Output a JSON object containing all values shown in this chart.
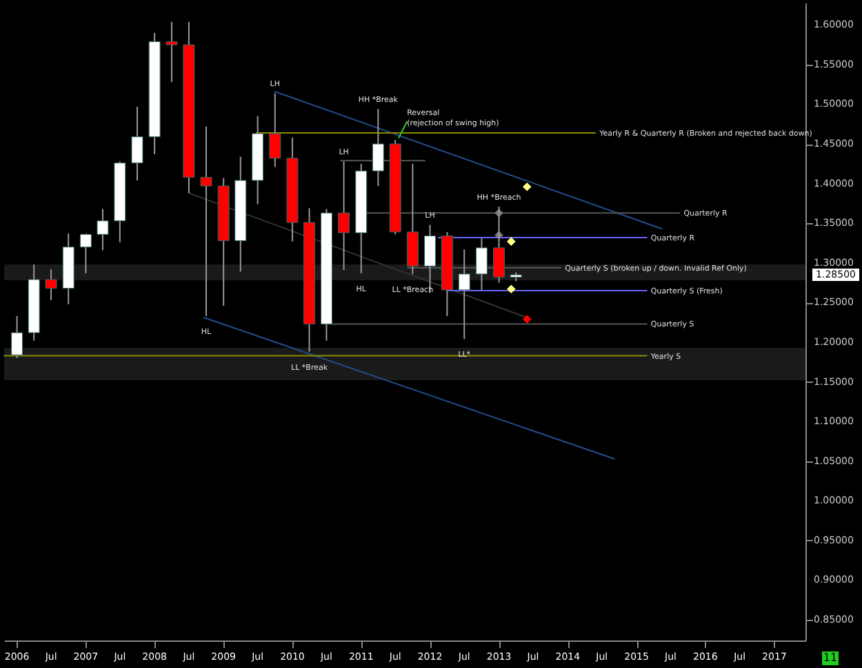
{
  "chart_data": {
    "type": "candlestick",
    "x": [
      "2006-01-01",
      "2006-04-01",
      "2006-07-01",
      "2006-10-01",
      "2007-01-01",
      "2007-04-01",
      "2007-07-01",
      "2007-10-01",
      "2008-01-01",
      "2008-04-01",
      "2008-07-01",
      "2008-10-01",
      "2009-01-01",
      "2009-04-01",
      "2009-07-01",
      "2009-10-01",
      "2010-01-01",
      "2010-04-01",
      "2010-07-01",
      "2010-10-01",
      "2011-01-01",
      "2011-04-01",
      "2011-07-01",
      "2011-10-01",
      "2012-01-01",
      "2012-04-01",
      "2012-07-01",
      "2012-10-01",
      "2013-01-01",
      "2013-04-01"
    ],
    "ohlc": [
      [
        1.184,
        1.233,
        1.18,
        1.212
      ],
      [
        1.212,
        1.298,
        1.202,
        1.279
      ],
      [
        1.279,
        1.292,
        1.253,
        1.268
      ],
      [
        1.268,
        1.337,
        1.248,
        1.32
      ],
      [
        1.32,
        1.337,
        1.287,
        1.336
      ],
      [
        1.336,
        1.368,
        1.316,
        1.353
      ],
      [
        1.353,
        1.428,
        1.326,
        1.426
      ],
      [
        1.426,
        1.497,
        1.404,
        1.459
      ],
      [
        1.459,
        1.59,
        1.437,
        1.579
      ],
      [
        1.579,
        1.604,
        1.528,
        1.575
      ],
      [
        1.575,
        1.604,
        1.388,
        1.408
      ],
      [
        1.408,
        1.472,
        1.233,
        1.397
      ],
      [
        1.397,
        1.407,
        1.246,
        1.328
      ],
      [
        1.328,
        1.434,
        1.289,
        1.404
      ],
      [
        1.404,
        1.485,
        1.374,
        1.463
      ],
      [
        1.463,
        1.514,
        1.421,
        1.432
      ],
      [
        1.432,
        1.458,
        1.327,
        1.351
      ],
      [
        1.351,
        1.369,
        1.188,
        1.223
      ],
      [
        1.223,
        1.368,
        1.202,
        1.363
      ],
      [
        1.363,
        1.428,
        1.291,
        1.338
      ],
      [
        1.338,
        1.425,
        1.287,
        1.416
      ],
      [
        1.416,
        1.494,
        1.397,
        1.45
      ],
      [
        1.45,
        1.455,
        1.336,
        1.339
      ],
      [
        1.339,
        1.425,
        1.286,
        1.296
      ],
      [
        1.296,
        1.348,
        1.262,
        1.334
      ],
      [
        1.334,
        1.339,
        1.233,
        1.266
      ],
      [
        1.266,
        1.317,
        1.204,
        1.286
      ],
      [
        1.286,
        1.331,
        1.266,
        1.319
      ],
      [
        1.319,
        1.371,
        1.275,
        1.282
      ],
      [
        1.282,
        1.288,
        1.277,
        1.285
      ]
    ],
    "colors": [
      "#ffffff",
      "#ffffff",
      "#ff0000",
      "#ffffff",
      "#ffffff",
      "#ffffff",
      "#ffffff",
      "#ffffff",
      "#ffffff",
      "#ff0000",
      "#ff0000",
      "#ff0000",
      "#ff0000",
      "#ffffff",
      "#ffffff",
      "#ff0000",
      "#ff0000",
      "#ff0000",
      "#ffffff",
      "#ff0000",
      "#ffffff",
      "#ffffff",
      "#ff0000",
      "#ff0000",
      "#ffffff",
      "#ff0000",
      "#ffffff",
      "#ffffff",
      "#ff0000",
      "#ffffff"
    ],
    "series": [
      {
        "type": "line",
        "color": "#1f4f8f",
        "x": [
          "2009-10-01",
          "2015-05-15"
        ],
        "values": [
          1.516,
          1.343
        ]
      },
      {
        "type": "line",
        "color": "#1f4f8f",
        "x": [
          "2008-09-20",
          "2014-09-05"
        ],
        "values": [
          1.231,
          1.053
        ]
      },
      {
        "type": "line",
        "color": "#333333",
        "x": [
          "2008-07-01",
          "2013-05-30"
        ],
        "values": [
          1.388,
          1.231
        ]
      },
      {
        "type": "line",
        "color": "#8b8b00",
        "x": [
          "2009-06-25",
          "2014-05-27"
        ],
        "values": [
          1.464,
          1.464
        ]
      },
      {
        "type": "line",
        "color": "#8b8b00",
        "x": [
          "2005-10-25",
          "2015-02-24"
        ],
        "values": [
          1.183,
          1.183
        ]
      },
      {
        "type": "line",
        "color": "#555555",
        "x": [
          "2010-12-15",
          "2015-08-17"
        ],
        "values": [
          1.363,
          1.363
        ]
      },
      {
        "type": "line",
        "color": "#6666ff",
        "x": [
          "2012-02-15",
          "2015-02-24"
        ],
        "values": [
          1.332,
          1.332
        ]
      },
      {
        "type": "line",
        "color": "#555555",
        "x": [
          "2011-09-05",
          "2013-11-25"
        ],
        "values": [
          1.294,
          1.294
        ]
      },
      {
        "type": "line",
        "color": "#6666ff",
        "x": [
          "2012-04-07",
          "2015-02-24"
        ],
        "values": [
          1.265,
          1.265
        ]
      },
      {
        "type": "line",
        "color": "#555555",
        "x": [
          "2010-06-15",
          "2015-02-24"
        ],
        "values": [
          1.223,
          1.223
        ]
      },
      {
        "type": "line",
        "color": "#555555",
        "x": [
          "2010-09-15",
          "2011-12-05"
        ],
        "values": [
          1.429,
          1.429
        ]
      },
      {
        "type": "line",
        "color": "#33cc33",
        "x": [
          "2011-09-01",
          "2011-07-20"
        ],
        "values": [
          1.478,
          1.458
        ]
      },
      {
        "type": "scatter",
        "marker": "diamond",
        "color": "#ffff80",
        "x": [
          "2013-05-30",
          "2013-03-07",
          "2013-03-07"
        ],
        "values": [
          1.396,
          1.327,
          1.267
        ]
      },
      {
        "type": "scatter",
        "marker": "diamond",
        "color": "#ff0000",
        "x": [
          "2013-05-30"
        ],
        "values": [
          1.229
        ]
      },
      {
        "type": "scatter",
        "marker": "diamond",
        "color": "#777777",
        "x": [
          "2013-01-01",
          "2013-01-01"
        ],
        "values": [
          1.363,
          1.335
        ]
      }
    ],
    "bands": [
      {
        "axis": "y",
        "from": 1.278,
        "to": 1.298,
        "color": "#1a1a1a"
      },
      {
        "axis": "y",
        "from": 1.152,
        "to": 1.193,
        "color": "#1a1a1a"
      }
    ],
    "annotations": [
      {
        "text": "Yearly R & Quarterly R (Broken and rejected back down)",
        "x": "2014-05-27",
        "y": 1.464
      },
      {
        "text": "Yearly S",
        "x": "2015-02-24",
        "y": 1.183
      },
      {
        "text": "Quarterly R",
        "x": "2015-08-17",
        "y": 1.363
      },
      {
        "text": "Quarterly R",
        "x": "2015-02-24",
        "y": 1.332
      },
      {
        "text": "Quarterly S (broken up / down. Invalid Ref Only)",
        "x": "2013-11-25",
        "y": 1.294
      },
      {
        "text": "Quarterly S (Fresh)",
        "x": "2015-02-24",
        "y": 1.265
      },
      {
        "text": "Quarterly S",
        "x": "2015-02-24",
        "y": 1.223
      },
      {
        "text": "LH",
        "x": "2009-10-01",
        "y": 1.514
      },
      {
        "text": "HH *Break",
        "x": "2011-04-01",
        "y": 1.494
      },
      {
        "text": "Reversal\n(rejection of swing high)",
        "x": "2011-09-01",
        "y": 1.478
      },
      {
        "text": "LH",
        "x": "2010-10-01",
        "y": 1.428
      },
      {
        "text": "HL",
        "x": "2008-10-01",
        "y": 1.233
      },
      {
        "text": "HL",
        "x": "2011-01-01",
        "y": 1.287
      },
      {
        "text": "LL *Break",
        "x": "2010-04-01",
        "y": 1.188
      },
      {
        "text": "LL *Breach",
        "x": "2011-10-01",
        "y": 1.286
      },
      {
        "text": "LH",
        "x": "2012-01-01",
        "y": 1.348
      },
      {
        "text": "HH *Breach",
        "x": "2013-01-01",
        "y": 1.371
      },
      {
        "text": "LL*",
        "x": "2012-07-01",
        "y": 1.204
      },
      "1.28500",
      "11"
    ],
    "xlim": [
      "2005-10-25",
      "2017-06-15"
    ],
    "xticks": [
      {
        "value": "2006-01-01",
        "label": "2006"
      },
      {
        "value": "2006-07-01",
        "label": "Jul"
      },
      {
        "value": "2007-01-01",
        "label": "2007"
      },
      {
        "value": "2007-07-01",
        "label": "Jul"
      },
      {
        "value": "2008-01-01",
        "label": "2008"
      },
      {
        "value": "2008-07-01",
        "label": "Jul"
      },
      {
        "value": "2009-01-01",
        "label": "2009"
      },
      {
        "value": "2009-07-01",
        "label": "Jul"
      },
      {
        "value": "2010-01-01",
        "label": "2010"
      },
      {
        "value": "2010-07-01",
        "label": "Jul"
      },
      {
        "value": "2011-01-01",
        "label": "2011"
      },
      {
        "value": "2011-07-01",
        "label": "Jul"
      },
      {
        "value": "2012-01-01",
        "label": "2012"
      },
      {
        "value": "2012-07-01",
        "label": "Jul"
      },
      {
        "value": "2013-01-01",
        "label": "2013"
      },
      {
        "value": "2013-07-01",
        "label": "Jul"
      },
      {
        "value": "2014-01-01",
        "label": "2014"
      },
      {
        "value": "2014-07-01",
        "label": "Jul"
      },
      {
        "value": "2015-01-01",
        "label": "2015"
      },
      {
        "value": "2015-07-01",
        "label": "Jul"
      },
      {
        "value": "2016-01-01",
        "label": "2016"
      },
      {
        "value": "2016-07-01",
        "label": "Jul"
      },
      {
        "value": "2017-01-01",
        "label": "2017"
      }
    ],
    "ylim": [
      0.824,
      1.628
    ],
    "yticks": [
      {
        "value": 0.85,
        "label": "0.85000"
      },
      {
        "value": 0.9,
        "label": "0.90000"
      },
      {
        "value": 0.95,
        "label": "0.95000"
      },
      {
        "value": 1.0,
        "label": "1.00000"
      },
      {
        "value": 1.05,
        "label": "1.05000"
      },
      {
        "value": 1.1,
        "label": "1.10000"
      },
      {
        "value": 1.15,
        "label": "1.15000"
      },
      {
        "value": 1.2,
        "label": "1.20000"
      },
      {
        "value": 1.25,
        "label": "1.25000"
      },
      {
        "value": 1.3,
        "label": "1.30000"
      },
      {
        "value": 1.35,
        "label": "1.35000"
      },
      {
        "value": 1.4,
        "label": "1.40000"
      },
      {
        "value": 1.45,
        "label": "1.45000"
      },
      {
        "value": 1.5,
        "label": "1.50000"
      },
      {
        "value": 1.55,
        "label": "1.55000"
      },
      {
        "value": 1.6,
        "label": "1.60000"
      }
    ],
    "grid": false
  }
}
